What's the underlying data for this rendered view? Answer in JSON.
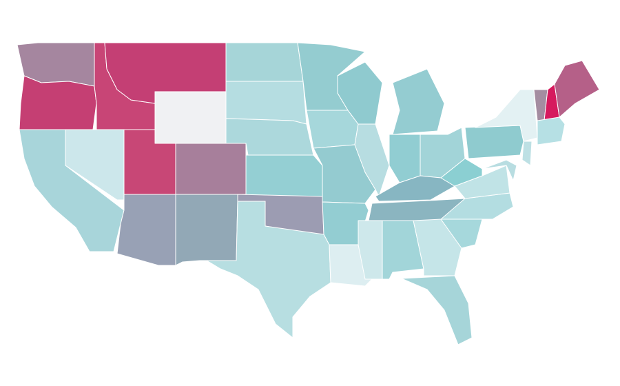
{
  "map": {
    "regions": [
      {
        "color": "#a5869f"
      },
      {
        "color": "#c53f73"
      },
      {
        "color": "#a8d5da"
      },
      {
        "color": "#cce7eb"
      },
      {
        "color": "#c84576"
      },
      {
        "color": "#c43f74"
      },
      {
        "color": "#f0f1f3"
      },
      {
        "color": "#c84776"
      },
      {
        "color": "#a77f9b"
      },
      {
        "color": "#98a1b5"
      },
      {
        "color": "#92a8b6"
      },
      {
        "color": "#a6d5d8"
      },
      {
        "color": "#b5dde1"
      },
      {
        "color": "#acd8dc"
      },
      {
        "color": "#94cfd3"
      },
      {
        "color": "#9c9cb2"
      },
      {
        "color": "#b7dee1"
      },
      {
        "color": "#94ccd0"
      },
      {
        "color": "#a6d7db"
      },
      {
        "color": "#94cbd0"
      },
      {
        "color": "#93cdd2"
      },
      {
        "color": "#ddeef1"
      },
      {
        "color": "#8fcacf"
      },
      {
        "color": "#b7dde1"
      },
      {
        "color": "#94ccd1"
      },
      {
        "color": "#91cdd2"
      },
      {
        "color": "#a2d4d8"
      },
      {
        "color": "#87b6c2"
      },
      {
        "color": "#8bb5c0"
      },
      {
        "color": "#cee8eb"
      },
      {
        "color": "#a2d5d9"
      },
      {
        "color": "#c5e5e8"
      },
      {
        "color": "#a6d5d9"
      },
      {
        "color": "#a6d8dc"
      },
      {
        "color": "#b3dde1"
      },
      {
        "color": "#c0e3e6"
      },
      {
        "color": "#8bcfd2"
      },
      {
        "color": "#8fcbcf"
      },
      {
        "color": "#e3f1f3"
      },
      {
        "color": "#b8dde1"
      },
      {
        "color": "#bde0e4"
      },
      {
        "color": "#a48da1"
      },
      {
        "color": "#d61a5e"
      },
      {
        "color": "#b56088"
      },
      {
        "color": "#b6e0e4"
      }
    ]
  }
}
